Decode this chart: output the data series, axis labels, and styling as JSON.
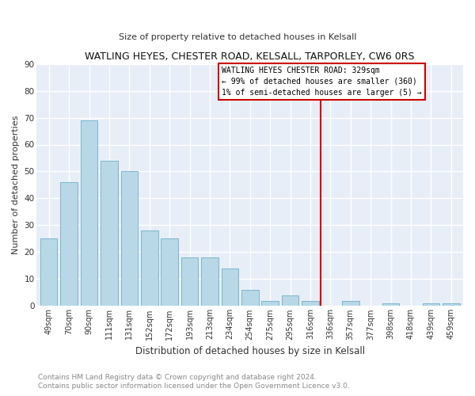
{
  "title": "WATLING HEYES, CHESTER ROAD, KELSALL, TARPORLEY, CW6 0RS",
  "subtitle": "Size of property relative to detached houses in Kelsall",
  "xlabel": "Distribution of detached houses by size in Kelsall",
  "ylabel": "Number of detached properties",
  "bar_labels": [
    "49sqm",
    "70sqm",
    "90sqm",
    "111sqm",
    "131sqm",
    "152sqm",
    "172sqm",
    "193sqm",
    "213sqm",
    "234sqm",
    "254sqm",
    "275sqm",
    "295sqm",
    "316sqm",
    "336sqm",
    "357sqm",
    "377sqm",
    "398sqm",
    "418sqm",
    "439sqm",
    "459sqm"
  ],
  "bar_values": [
    25,
    46,
    69,
    54,
    50,
    28,
    25,
    18,
    18,
    14,
    6,
    2,
    4,
    2,
    0,
    2,
    0,
    1,
    0,
    1,
    1
  ],
  "bar_color": "#b8d8e8",
  "bar_edge_color": "#7ab5cd",
  "vline_x": 13.5,
  "vline_color": "#cc0000",
  "annotation_title": "WATLING HEYES CHESTER ROAD: 329sqm",
  "annotation_line1": "← 99% of detached houses are smaller (360)",
  "annotation_line2": "1% of semi-detached houses are larger (5) →",
  "ylim": [
    0,
    90
  ],
  "yticks": [
    0,
    10,
    20,
    30,
    40,
    50,
    60,
    70,
    80,
    90
  ],
  "footer1": "Contains HM Land Registry data © Crown copyright and database right 2024.",
  "footer2": "Contains public sector information licensed under the Open Government Licence v3.0.",
  "fig_bg": "#ffffff",
  "plot_bg": "#e8eef8",
  "grid_color": "#ffffff",
  "footer_color": "#888888"
}
